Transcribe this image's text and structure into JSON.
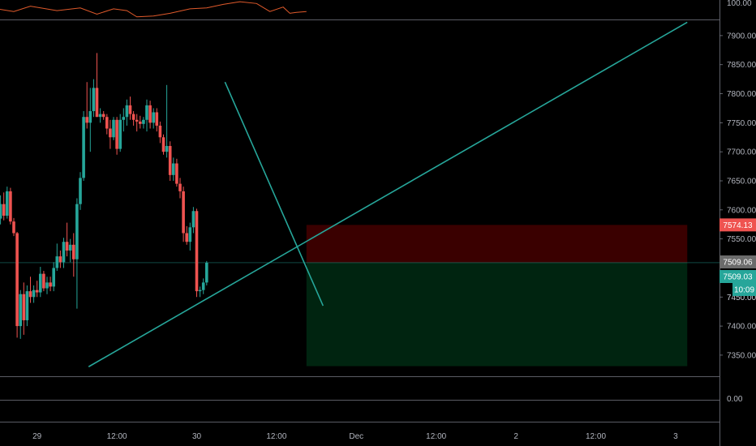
{
  "colors": {
    "background": "#000000",
    "up": "#26a69a",
    "down": "#ef5350",
    "trendline": "#26a69a",
    "osc_line": "#e05a2b",
    "axis_text": "#b2b5be",
    "separator": "#787b86",
    "stop_zone": "#3a0000",
    "target_zone": "#002410",
    "stop_label": "#ef5350",
    "target_label": "#26a69a",
    "ref_label": "#6b6b6b"
  },
  "oscillator_panel": {
    "axis_label": "100.00"
  },
  "volume_panel": {
    "axis_label": "0.00"
  },
  "chart_data": {
    "type": "candlestick",
    "ylim": [
      7315,
      7925
    ],
    "price_axis_ticks": [
      "7900.00",
      "7850.00",
      "7800.00",
      "7750.00",
      "7700.00",
      "7650.00",
      "7600.00",
      "7550.00",
      "7450.00",
      "7400.00",
      "7350.00"
    ],
    "time_axis": [
      {
        "label": "29",
        "t": 12
      },
      {
        "label": "12:00",
        "t": 36
      },
      {
        "label": "30",
        "t": 60
      },
      {
        "label": "12:00",
        "t": 84
      },
      {
        "label": "Dec",
        "t": 108
      },
      {
        "label": "12:00",
        "t": 132
      },
      {
        "label": "2",
        "t": 156
      },
      {
        "label": "12:00",
        "t": 180
      },
      {
        "label": "3",
        "t": 204
      }
    ],
    "candles": [
      [
        7598,
        7610,
        7578,
        7585
      ],
      [
        7585,
        7625,
        7575,
        7610
      ],
      [
        7610,
        7630,
        7582,
        7590
      ],
      [
        7590,
        7640,
        7585,
        7632
      ],
      [
        7632,
        7638,
        7575,
        7580
      ],
      [
        7580,
        7586,
        7555,
        7560
      ],
      [
        7560,
        7562,
        7380,
        7400
      ],
      [
        7400,
        7462,
        7378,
        7455
      ],
      [
        7455,
        7475,
        7385,
        7410
      ],
      [
        7410,
        7470,
        7400,
        7460
      ],
      [
        7460,
        7485,
        7440,
        7450
      ],
      [
        7450,
        7470,
        7440,
        7462
      ],
      [
        7462,
        7478,
        7450,
        7458
      ],
      [
        7458,
        7502,
        7450,
        7490
      ],
      [
        7490,
        7495,
        7460,
        7465
      ],
      [
        7465,
        7485,
        7455,
        7475
      ],
      [
        7475,
        7485,
        7460,
        7468
      ],
      [
        7468,
        7510,
        7460,
        7500
      ],
      [
        7500,
        7542,
        7495,
        7520
      ],
      [
        7520,
        7530,
        7500,
        7510
      ],
      [
        7510,
        7552,
        7500,
        7545
      ],
      [
        7545,
        7578,
        7520,
        7530
      ],
      [
        7530,
        7550,
        7510,
        7540
      ],
      [
        7540,
        7560,
        7485,
        7515
      ],
      [
        7515,
        7620,
        7430,
        7610
      ],
      [
        7610,
        7665,
        7600,
        7655
      ],
      [
        7655,
        7770,
        7650,
        7760
      ],
      [
        7760,
        7820,
        7740,
        7750
      ],
      [
        7750,
        7810,
        7700,
        7770
      ],
      [
        7770,
        7825,
        7760,
        7810
      ],
      [
        7810,
        7870,
        7760,
        7760
      ],
      [
        7760,
        7775,
        7750,
        7765
      ],
      [
        7765,
        7770,
        7755,
        7760
      ],
      [
        7760,
        7765,
        7730,
        7740
      ],
      [
        7740,
        7755,
        7705,
        7725
      ],
      [
        7725,
        7760,
        7720,
        7755
      ],
      [
        7755,
        7760,
        7695,
        7705
      ],
      [
        7705,
        7765,
        7700,
        7755
      ],
      [
        7755,
        7775,
        7735,
        7760
      ],
      [
        7760,
        7790,
        7745,
        7780
      ],
      [
        7780,
        7795,
        7755,
        7765
      ],
      [
        7765,
        7770,
        7745,
        7755
      ],
      [
        7755,
        7765,
        7735,
        7752
      ],
      [
        7752,
        7762,
        7740,
        7748
      ],
      [
        7748,
        7760,
        7740,
        7755
      ],
      [
        7755,
        7790,
        7735,
        7780
      ],
      [
        7780,
        7788,
        7740,
        7750
      ],
      [
        7750,
        7775,
        7740,
        7768
      ],
      [
        7768,
        7775,
        7735,
        7745
      ],
      [
        7745,
        7752,
        7715,
        7725
      ],
      [
        7725,
        7730,
        7695,
        7700
      ],
      [
        7700,
        7815,
        7690,
        7710
      ],
      [
        7710,
        7718,
        7650,
        7660
      ],
      [
        7660,
        7690,
        7650,
        7680
      ],
      [
        7680,
        7688,
        7640,
        7645
      ],
      [
        7645,
        7655,
        7620,
        7632
      ],
      [
        7632,
        7640,
        7545,
        7560
      ],
      [
        7560,
        7572,
        7540,
        7545
      ],
      [
        7545,
        7578,
        7530,
        7570
      ],
      [
        7570,
        7605,
        7560,
        7598
      ],
      [
        7598,
        7602,
        7450,
        7460
      ],
      [
        7460,
        7468,
        7450,
        7462
      ],
      [
        7462,
        7482,
        7455,
        7475
      ],
      [
        7475,
        7512,
        7470,
        7509
      ]
    ],
    "trendlines": [
      {
        "from": {
          "t": 27.5,
          "p": 7330
        },
        "to": {
          "t": 207.5,
          "p": 7923
        }
      },
      {
        "from": {
          "t": 68.5,
          "p": 7820
        },
        "to": {
          "t": 98.0,
          "p": 7435
        }
      }
    ],
    "position": {
      "t_start": 93.0,
      "t_end": 207.5,
      "entry": 7509.06,
      "stop": 7574.13,
      "target": 7331
    },
    "price_labels": {
      "stop": "7574.13",
      "entry": "7509.06",
      "current": "7509.03",
      "countdown": "10:09",
      "underlying_tick": "7450.00"
    },
    "oscillator": [
      [
        0,
        0.55
      ],
      [
        5,
        0.4
      ],
      [
        10,
        0.7
      ],
      [
        18,
        0.45
      ],
      [
        25,
        0.6
      ],
      [
        30,
        0.25
      ],
      [
        35,
        0.55
      ],
      [
        39,
        0.45
      ],
      [
        42,
        0.1
      ],
      [
        47,
        0.15
      ],
      [
        52,
        0.3
      ],
      [
        58,
        0.55
      ],
      [
        63,
        0.6
      ],
      [
        68,
        0.8
      ],
      [
        73,
        0.95
      ],
      [
        78,
        0.85
      ],
      [
        82,
        0.4
      ],
      [
        86,
        0.65
      ],
      [
        88,
        0.3
      ],
      [
        90,
        0.35
      ],
      [
        93,
        0.4
      ]
    ]
  }
}
